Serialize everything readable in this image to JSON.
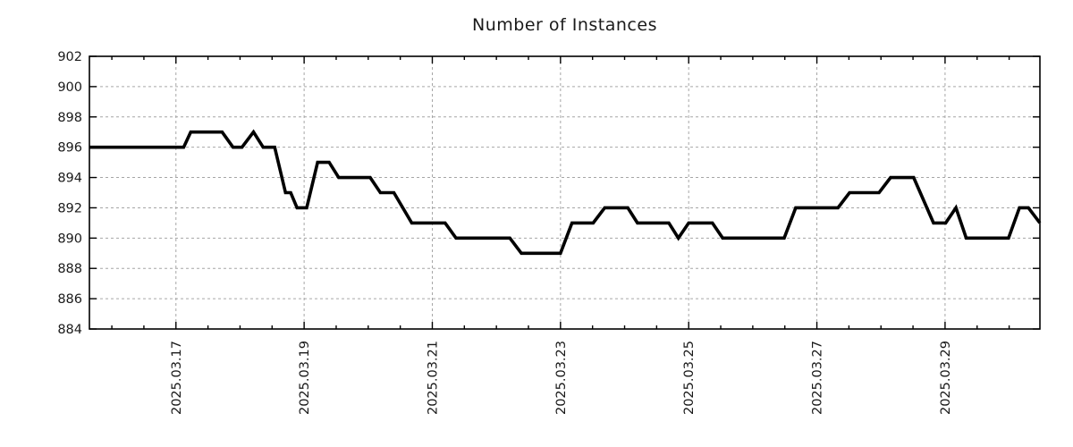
{
  "colors": {
    "line": "#000000",
    "grid": "#a6a6a6",
    "axis": "#000000",
    "text": "#1a1a1a",
    "background": "#ffffff"
  },
  "chart_data": {
    "type": "line",
    "title": "Number of Instances",
    "xlabel": "",
    "ylabel": "",
    "x_unit": "days since 2025-03-15 00:00",
    "xlim": [
      0.65,
      15.48
    ],
    "ylim": [
      884,
      902
    ],
    "y_tick_step": 2,
    "x_minor_tick_step": 0.5,
    "grid": true,
    "legend": "none",
    "x_major_ticks": [
      {
        "value": 2,
        "label": "2025.03.17"
      },
      {
        "value": 4,
        "label": "2025.03.19"
      },
      {
        "value": 6,
        "label": "2025.03.21"
      },
      {
        "value": 8,
        "label": "2025.03.23"
      },
      {
        "value": 10,
        "label": "2025.03.25"
      },
      {
        "value": 12,
        "label": "2025.03.27"
      },
      {
        "value": 14,
        "label": "2025.03.29"
      }
    ],
    "series": [
      {
        "name": "instances",
        "color": "#000000",
        "points": [
          [
            0.65,
            896
          ],
          [
            2.12,
            896
          ],
          [
            2.23,
            897
          ],
          [
            2.72,
            897
          ],
          [
            2.89,
            896
          ],
          [
            3.03,
            896
          ],
          [
            3.21,
            897
          ],
          [
            3.36,
            896
          ],
          [
            3.54,
            896
          ],
          [
            3.71,
            893
          ],
          [
            3.79,
            893
          ],
          [
            3.89,
            892
          ],
          [
            4.04,
            892
          ],
          [
            4.21,
            895
          ],
          [
            4.39,
            895
          ],
          [
            4.54,
            894
          ],
          [
            5.03,
            894
          ],
          [
            5.19,
            893
          ],
          [
            5.4,
            893
          ],
          [
            5.68,
            891
          ],
          [
            6.2,
            891
          ],
          [
            6.37,
            890
          ],
          [
            7.21,
            890
          ],
          [
            7.39,
            889
          ],
          [
            8.0,
            889
          ],
          [
            8.18,
            891
          ],
          [
            8.51,
            891
          ],
          [
            8.69,
            892
          ],
          [
            9.05,
            892
          ],
          [
            9.2,
            891
          ],
          [
            9.69,
            891
          ],
          [
            9.84,
            890
          ],
          [
            10.0,
            891
          ],
          [
            10.37,
            891
          ],
          [
            10.53,
            890
          ],
          [
            11.49,
            890
          ],
          [
            11.67,
            892
          ],
          [
            12.33,
            892
          ],
          [
            12.51,
            893
          ],
          [
            12.97,
            893
          ],
          [
            13.15,
            894
          ],
          [
            13.51,
            894
          ],
          [
            13.82,
            891
          ],
          [
            14.01,
            891
          ],
          [
            14.17,
            892
          ],
          [
            14.33,
            890
          ],
          [
            14.99,
            890
          ],
          [
            15.16,
            892
          ],
          [
            15.3,
            892
          ],
          [
            15.48,
            891
          ]
        ]
      }
    ]
  }
}
